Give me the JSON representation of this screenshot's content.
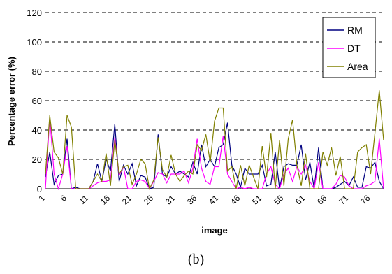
{
  "panel_label": "(b)",
  "chart_data": {
    "type": "line",
    "xlabel": "image",
    "ylabel": "Percentage error (%)",
    "ylim": [
      0,
      120
    ],
    "yticks": [
      0,
      20,
      40,
      60,
      80,
      100,
      120
    ],
    "grid": "horizontal dashed",
    "legend_position": "top-right",
    "x": [
      1,
      2,
      3,
      4,
      5,
      6,
      7,
      8,
      9,
      10,
      11,
      12,
      13,
      14,
      15,
      16,
      17,
      18,
      19,
      20,
      21,
      22,
      23,
      24,
      25,
      26,
      27,
      28,
      29,
      30,
      31,
      32,
      33,
      34,
      35,
      36,
      37,
      38,
      39,
      40,
      41,
      42,
      43,
      44,
      45,
      46,
      47,
      48,
      49,
      50,
      51,
      52,
      53,
      54,
      55,
      56,
      57,
      58,
      59,
      60,
      61,
      62,
      63,
      64,
      65,
      66,
      67,
      68,
      69,
      70,
      71,
      72,
      73,
      74,
      75,
      76,
      77,
      78,
      79
    ],
    "x_tick_labels": [
      "1",
      "6",
      "11",
      "16",
      "21",
      "26",
      "31",
      "36",
      "41",
      "46",
      "51",
      "56",
      "61",
      "66",
      "71",
      "76"
    ],
    "series": [
      {
        "name": "RM",
        "color": "#000080",
        "values": [
          8,
          25,
          3,
          9,
          10,
          34,
          0,
          1,
          0,
          0,
          0,
          5,
          17,
          5,
          20,
          12,
          44,
          5,
          16,
          10,
          17,
          2,
          9,
          8,
          0,
          1,
          37,
          10,
          8,
          15,
          10,
          12,
          10,
          8,
          18,
          10,
          30,
          15,
          20,
          15,
          28,
          30,
          45,
          16,
          10,
          1,
          14,
          10,
          10,
          10,
          16,
          2,
          3,
          25,
          0,
          15,
          17,
          16,
          16,
          30,
          6,
          18,
          0,
          28,
          0,
          0,
          0,
          1,
          3,
          5,
          2,
          8,
          1,
          1,
          15,
          14,
          18,
          5,
          0
        ]
      },
      {
        "name": "DT",
        "color": "#ff00ff",
        "values": [
          0,
          49,
          10,
          0,
          10,
          29,
          0,
          0,
          0,
          0,
          0,
          2,
          4,
          5,
          5,
          6,
          35,
          9,
          15,
          0,
          0,
          5,
          6,
          5,
          0,
          5,
          11,
          10,
          4,
          10,
          10,
          10,
          12,
          4,
          14,
          34,
          14,
          5,
          3,
          15,
          15,
          36,
          10,
          5,
          0,
          1,
          0,
          1,
          0,
          0,
          0,
          10,
          15,
          3,
          0,
          10,
          14,
          5,
          15,
          10,
          16,
          5,
          0,
          18,
          0,
          0,
          0,
          3,
          9,
          8,
          2,
          0,
          0,
          0,
          2,
          3,
          5,
          34,
          0
        ]
      },
      {
        "name": "Area",
        "color": "#808000",
        "values": [
          10,
          50,
          25,
          21,
          10,
          50,
          42,
          0,
          0,
          0,
          0,
          5,
          10,
          5,
          24,
          2,
          33,
          10,
          15,
          16,
          3,
          10,
          20,
          17,
          0,
          6,
          35,
          13,
          8,
          23,
          10,
          5,
          9,
          12,
          10,
          30,
          26,
          37,
          18,
          46,
          55,
          55,
          12,
          15,
          0,
          16,
          2,
          16,
          8,
          0,
          29,
          8,
          38,
          0,
          33,
          2,
          34,
          47,
          16,
          2,
          24,
          0,
          0,
          0,
          25,
          16,
          28,
          9,
          22,
          0,
          0,
          0,
          25,
          28,
          30,
          10,
          38,
          67,
          33
        ]
      }
    ]
  }
}
